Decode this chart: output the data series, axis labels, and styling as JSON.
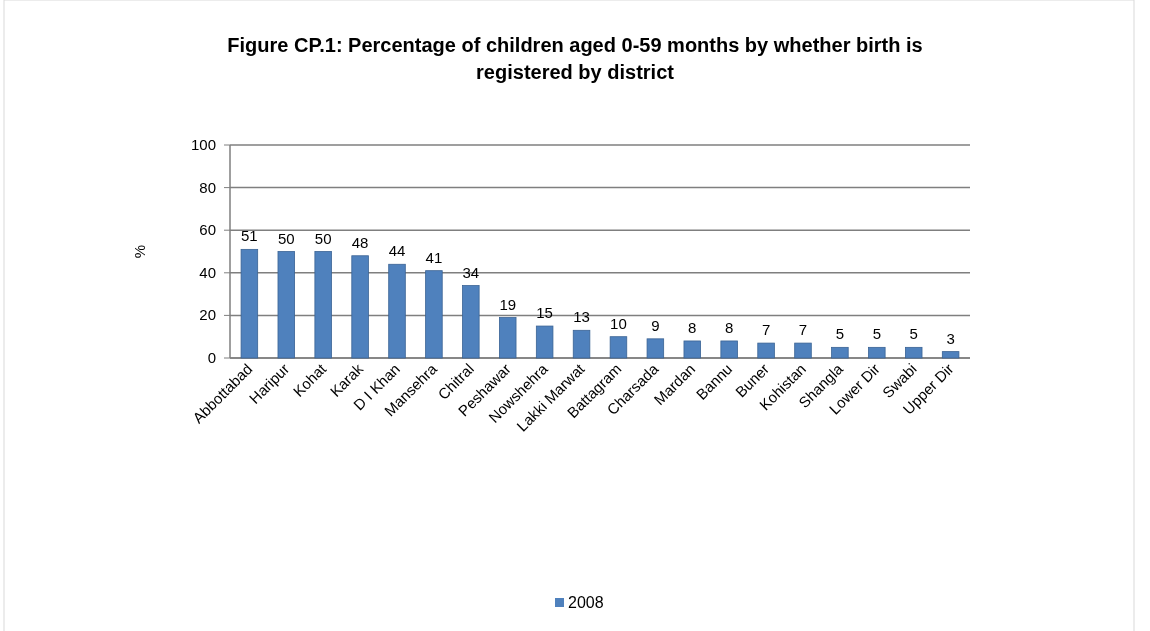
{
  "chart_data": {
    "type": "bar",
    "title": "Figure CP.1: Percentage of children aged 0-59 months by whether birth is registered by district",
    "ylabel": "%",
    "categories": [
      "Abbottabad",
      "Haripur",
      "Kohat",
      "Karak",
      "D I Khan",
      "Mansehra",
      "Chitral",
      "Peshawar",
      "Nowshehra",
      "Lakki Marwat",
      "Battagram",
      "Charsada",
      "Mardan",
      "Bannu",
      "Buner",
      "Kohistan",
      "Shangla",
      "Lower Dir",
      "Swabi",
      "Upper Dir"
    ],
    "series": [
      {
        "name": "2008",
        "color": "#4f81bd",
        "values": [
          51,
          50,
          50,
          48,
          44,
          41,
          34,
          19,
          15,
          13,
          10,
          9,
          8,
          8,
          7,
          7,
          5,
          5,
          5,
          3
        ]
      }
    ],
    "ylim": [
      0,
      100
    ],
    "yticks": [
      0,
      20,
      40,
      60,
      80,
      100
    ],
    "grid": "y",
    "legend": "bottom",
    "data_labels": true
  }
}
